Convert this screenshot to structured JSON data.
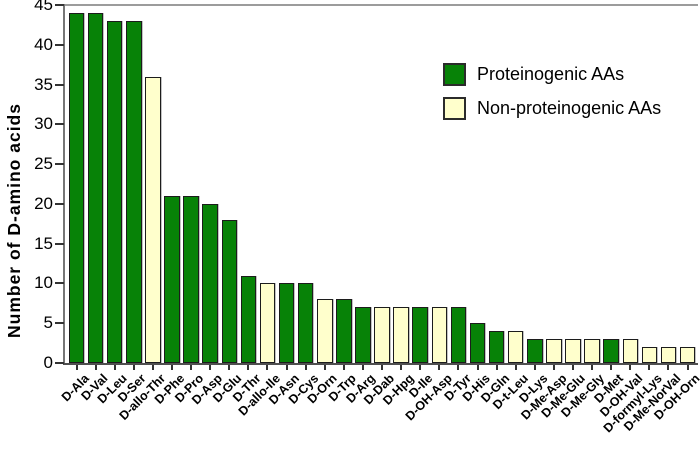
{
  "figure": {
    "background": "#ffffff",
    "bar_border_color": "#1c1c1c",
    "axis_color": "#666666"
  },
  "y_axis": {
    "title": "Number of D-amino acids",
    "ticks": [
      0,
      5,
      10,
      15,
      20,
      25,
      30,
      35,
      40,
      45
    ],
    "min": 0,
    "max": 45
  },
  "legend": {
    "items": [
      {
        "key": "proteinogenic",
        "label": "Proteinogenic AAs",
        "color": "#078207"
      },
      {
        "key": "non_proteinogenic",
        "label": "Non-proteinogenic AAs",
        "color": "#FFFFCC"
      }
    ]
  },
  "chart_data": {
    "type": "bar",
    "title": "",
    "xlabel": "",
    "ylabel": "Number of D-amino acids",
    "ylim": [
      0,
      45
    ],
    "grid": false,
    "legend_position": "upper-right-inside",
    "series": [
      {
        "name": "Proteinogenic AAs",
        "key": "proteinogenic",
        "color": "#078207"
      },
      {
        "name": "Non-proteinogenic AAs",
        "key": "non_proteinogenic",
        "color": "#FFFFCC"
      }
    ],
    "categories": [
      "D-Ala",
      "D-Val",
      "D-Leu",
      "D-Ser",
      "D-allo-Thr",
      "D-Phe",
      "D-Pro",
      "D-Asp",
      "D-Glu",
      "D-Thr",
      "D-allo-Ile",
      "D-Asn",
      "D-Cys",
      "D-Orn",
      "D-Trp",
      "D-Arg",
      "D-Dab",
      "D-Hpg",
      "D-Ile",
      "D-OH-Asp",
      "D-Tyr",
      "D-His",
      "D-Gln",
      "D-t-Leu",
      "D-Lys",
      "D-Me-Asp",
      "D-Me-Glu",
      "D-Me-Gly",
      "D-Met",
      "D-OH-Val",
      "D-formyl-Lys",
      "D-Me-NorVal",
      "D-OH-Orn"
    ],
    "values": [
      44,
      44,
      43,
      43,
      36,
      21,
      21,
      20,
      18,
      11,
      10,
      10,
      10,
      8,
      8,
      7,
      7,
      7,
      7,
      7,
      7,
      5,
      4,
      4,
      3,
      3,
      3,
      3,
      3,
      3,
      2,
      2,
      2
    ],
    "bars": [
      {
        "label": "D-Ala",
        "value": 44,
        "series": "proteinogenic"
      },
      {
        "label": "D-Val",
        "value": 44,
        "series": "proteinogenic"
      },
      {
        "label": "D-Leu",
        "value": 43,
        "series": "proteinogenic"
      },
      {
        "label": "D-Ser",
        "value": 43,
        "series": "proteinogenic"
      },
      {
        "label": "D-allo-Thr",
        "value": 36,
        "series": "non_proteinogenic"
      },
      {
        "label": "D-Phe",
        "value": 21,
        "series": "proteinogenic"
      },
      {
        "label": "D-Pro",
        "value": 21,
        "series": "proteinogenic"
      },
      {
        "label": "D-Asp",
        "value": 20,
        "series": "proteinogenic"
      },
      {
        "label": "D-Glu",
        "value": 18,
        "series": "proteinogenic"
      },
      {
        "label": "D-Thr",
        "value": 11,
        "series": "proteinogenic"
      },
      {
        "label": "D-allo-Ile",
        "value": 10,
        "series": "non_proteinogenic"
      },
      {
        "label": "D-Asn",
        "value": 10,
        "series": "proteinogenic"
      },
      {
        "label": "D-Cys",
        "value": 10,
        "series": "proteinogenic"
      },
      {
        "label": "D-Orn",
        "value": 8,
        "series": "non_proteinogenic"
      },
      {
        "label": "D-Trp",
        "value": 8,
        "series": "proteinogenic"
      },
      {
        "label": "D-Arg",
        "value": 7,
        "series": "proteinogenic"
      },
      {
        "label": "D-Dab",
        "value": 7,
        "series": "non_proteinogenic"
      },
      {
        "label": "D-Hpg",
        "value": 7,
        "series": "non_proteinogenic"
      },
      {
        "label": "D-Ile",
        "value": 7,
        "series": "proteinogenic"
      },
      {
        "label": "D-OH-Asp",
        "value": 7,
        "series": "non_proteinogenic"
      },
      {
        "label": "D-Tyr",
        "value": 7,
        "series": "proteinogenic"
      },
      {
        "label": "D-His",
        "value": 5,
        "series": "proteinogenic"
      },
      {
        "label": "D-Gln",
        "value": 4,
        "series": "proteinogenic"
      },
      {
        "label": "D-t-Leu",
        "value": 4,
        "series": "non_proteinogenic"
      },
      {
        "label": "D-Lys",
        "value": 3,
        "series": "proteinogenic"
      },
      {
        "label": "D-Me-Asp",
        "value": 3,
        "series": "non_proteinogenic"
      },
      {
        "label": "D-Me-Glu",
        "value": 3,
        "series": "non_proteinogenic"
      },
      {
        "label": "D-Me-Gly",
        "value": 3,
        "series": "non_proteinogenic"
      },
      {
        "label": "D-Met",
        "value": 3,
        "series": "proteinogenic"
      },
      {
        "label": "D-OH-Val",
        "value": 3,
        "series": "non_proteinogenic"
      },
      {
        "label": "D-formyl-Lys",
        "value": 2,
        "series": "non_proteinogenic"
      },
      {
        "label": "D-Me-NorVal",
        "value": 2,
        "series": "non_proteinogenic"
      },
      {
        "label": "D-OH-Orn",
        "value": 2,
        "series": "non_proteinogenic"
      }
    ]
  }
}
